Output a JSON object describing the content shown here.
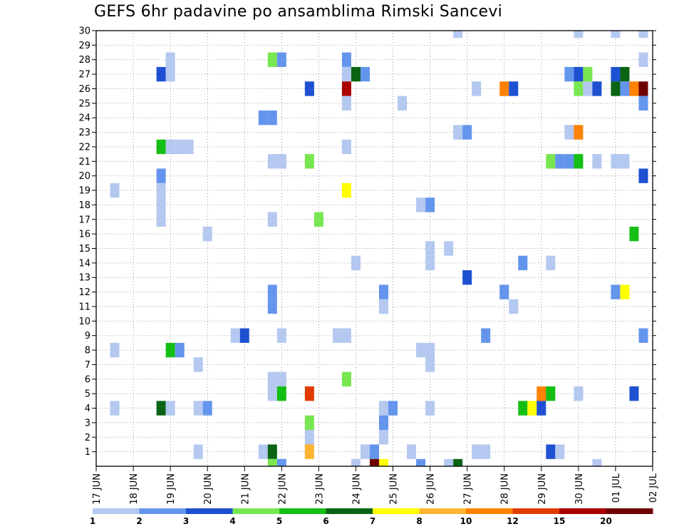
{
  "chart_data": {
    "type": "heatmap",
    "title": "GEFS 6hr padavine po ansamblima Rimski Sancevi",
    "x_labels": [
      "17 JUN",
      "18 JUN",
      "19 JUN",
      "20 JUN",
      "21 JUN",
      "22 JUN",
      "23 JUN",
      "24 JUN",
      "25 JUN",
      "26 JUN",
      "27 JUN",
      "28 JUN",
      "29 JUN",
      "30 JUN",
      "01 JUL",
      "02 JUL"
    ],
    "y_labels": [
      "1",
      "2",
      "3",
      "4",
      "5",
      "6",
      "7",
      "8",
      "9",
      "10",
      "11",
      "12",
      "13",
      "14",
      "15",
      "16",
      "17",
      "18",
      "19",
      "20",
      "21",
      "22",
      "23",
      "24",
      "25",
      "26",
      "27",
      "28",
      "29",
      "30"
    ],
    "ylim": [
      0,
      30
    ],
    "grid": true,
    "legend": {
      "placement": "bottom",
      "labels": [
        "1",
        "2",
        "3",
        "4",
        "5",
        "6",
        "7",
        "8",
        "10",
        "12",
        "15",
        "20"
      ],
      "colors": [
        "#b4c8f0",
        "#6495ed",
        "#1e50d2",
        "#78e650",
        "#14be14",
        "#0a6414",
        "#ffff00",
        "#ffb432",
        "#ff8200",
        "#e13c00",
        "#aa0000",
        "#6e0000"
      ]
    },
    "colors": {
      "c1": "#b4c8f0",
      "c2": "#6495ed",
      "c3": "#1e50d2",
      "c4": "#78e650",
      "c5": "#14be14",
      "c6": "#0a6414",
      "c7": "#ffff00",
      "c8": "#ffb432",
      "c10": "#ff8200",
      "c12": "#e13c00",
      "c15": "#aa0000",
      "c20": "#6e0000"
    },
    "cells": [
      [
        0.5,
        19,
        1
      ],
      [
        0.5,
        8,
        1
      ],
      [
        0.5,
        4,
        1
      ],
      [
        1.75,
        27,
        3
      ],
      [
        2,
        27,
        1
      ],
      [
        2,
        28,
        1
      ],
      [
        1.75,
        22,
        5
      ],
      [
        2,
        22,
        1
      ],
      [
        2.25,
        22,
        1
      ],
      [
        2.5,
        22,
        1
      ],
      [
        1.75,
        20,
        2
      ],
      [
        1.75,
        19,
        1
      ],
      [
        1.75,
        18,
        1
      ],
      [
        1.75,
        17,
        1
      ],
      [
        2,
        8,
        5
      ],
      [
        2.25,
        8,
        2
      ],
      [
        1.75,
        4,
        6
      ],
      [
        2,
        4,
        1
      ],
      [
        3,
        16,
        1
      ],
      [
        2.75,
        7,
        1
      ],
      [
        2.75,
        4,
        1
      ],
      [
        3,
        4,
        2
      ],
      [
        2.75,
        1,
        1
      ],
      [
        3.75,
        9,
        1
      ],
      [
        4,
        9,
        3
      ],
      [
        4.5,
        24,
        2
      ],
      [
        4.75,
        24,
        2
      ],
      [
        4.75,
        28,
        4
      ],
      [
        5,
        28,
        2
      ],
      [
        4.75,
        21,
        1
      ],
      [
        5,
        21,
        1
      ],
      [
        4.75,
        17,
        1
      ],
      [
        4.75,
        12,
        2
      ],
      [
        4.75,
        11,
        2
      ],
      [
        5,
        9,
        1
      ],
      [
        4.75,
        6,
        1
      ],
      [
        5,
        6,
        1
      ],
      [
        4.75,
        5,
        1
      ],
      [
        5,
        5,
        5
      ],
      [
        4.5,
        1,
        1
      ],
      [
        4.75,
        1,
        6
      ],
      [
        4.75,
        0,
        4
      ],
      [
        5,
        0,
        2
      ],
      [
        5.75,
        26,
        3
      ],
      [
        5.75,
        21,
        4
      ],
      [
        6,
        17,
        4
      ],
      [
        5.75,
        5,
        12
      ],
      [
        5.75,
        3,
        4
      ],
      [
        5.75,
        2,
        1
      ],
      [
        5.75,
        1,
        8
      ],
      [
        6.5,
        9,
        1
      ],
      [
        6.75,
        28,
        2
      ],
      [
        6.75,
        27,
        1
      ],
      [
        7,
        27,
        6
      ],
      [
        7.25,
        27,
        2
      ],
      [
        6.75,
        26,
        15
      ],
      [
        6.75,
        25,
        1
      ],
      [
        6.75,
        22,
        1
      ],
      [
        6.75,
        19,
        7
      ],
      [
        7,
        14,
        1
      ],
      [
        6.75,
        9,
        1
      ],
      [
        6.75,
        6,
        4
      ],
      [
        7,
        0,
        1
      ],
      [
        7.25,
        1,
        1
      ],
      [
        7.5,
        1,
        2
      ],
      [
        7.75,
        4,
        1
      ],
      [
        8,
        4,
        2
      ],
      [
        7.75,
        3,
        2
      ],
      [
        7.75,
        2,
        1
      ],
      [
        7.75,
        12,
        2
      ],
      [
        7.75,
        11,
        1
      ],
      [
        8.25,
        25,
        1
      ],
      [
        7.5,
        0,
        20
      ],
      [
        7.75,
        0,
        7
      ],
      [
        8.5,
        1,
        1
      ],
      [
        8.75,
        0,
        2
      ],
      [
        8.75,
        18,
        1
      ],
      [
        9,
        18,
        2
      ],
      [
        9,
        15,
        1
      ],
      [
        9.5,
        15,
        1
      ],
      [
        9,
        14,
        1
      ],
      [
        8.75,
        8,
        1
      ],
      [
        9,
        8,
        1
      ],
      [
        9,
        7,
        1
      ],
      [
        9,
        4,
        1
      ],
      [
        9.5,
        0,
        1
      ],
      [
        9.75,
        0,
        6
      ],
      [
        9.75,
        30,
        1
      ],
      [
        9.75,
        23,
        1
      ],
      [
        10,
        23,
        2
      ],
      [
        10.25,
        26,
        1
      ],
      [
        10,
        13,
        3
      ],
      [
        10.5,
        9,
        2
      ],
      [
        10.25,
        1,
        1
      ],
      [
        10.5,
        1,
        1
      ],
      [
        11,
        12,
        2
      ],
      [
        11,
        26,
        10
      ],
      [
        11.25,
        26,
        3
      ],
      [
        11.5,
        14,
        2
      ],
      [
        11.25,
        11,
        1
      ],
      [
        11.5,
        4,
        5
      ],
      [
        11.75,
        4,
        7
      ],
      [
        12,
        4,
        3
      ],
      [
        12,
        5,
        10
      ],
      [
        12.25,
        5,
        5
      ],
      [
        12.75,
        27,
        2
      ],
      [
        13,
        27,
        3
      ],
      [
        13,
        26,
        4
      ],
      [
        13.25,
        26,
        1
      ],
      [
        13.5,
        26,
        3
      ],
      [
        13.25,
        27,
        4
      ],
      [
        12.75,
        23,
        1
      ],
      [
        13,
        23,
        10
      ],
      [
        12.25,
        21,
        4
      ],
      [
        12.5,
        21,
        2
      ],
      [
        12.75,
        21,
        2
      ],
      [
        13,
        21,
        5
      ],
      [
        13.5,
        21,
        1
      ],
      [
        12.25,
        14,
        1
      ],
      [
        12.25,
        1,
        3
      ],
      [
        12.5,
        1,
        1
      ],
      [
        13,
        5,
        1
      ],
      [
        13,
        30,
        1
      ],
      [
        13.5,
        0,
        1
      ],
      [
        14,
        30,
        1
      ],
      [
        14,
        27,
        3
      ],
      [
        14.25,
        27,
        6
      ],
      [
        14,
        26,
        6
      ],
      [
        14.25,
        26,
        2
      ],
      [
        14,
        21,
        1
      ],
      [
        14.25,
        21,
        1
      ],
      [
        14,
        12,
        2
      ],
      [
        14.25,
        12,
        7
      ],
      [
        14.5,
        26,
        10
      ],
      [
        14.75,
        26,
        20
      ],
      [
        14.75,
        30,
        1
      ],
      [
        14.75,
        28,
        1
      ],
      [
        14.75,
        25,
        2
      ],
      [
        14.75,
        20,
        3
      ],
      [
        14.5,
        16,
        5
      ],
      [
        14.75,
        9,
        2
      ],
      [
        14.5,
        5,
        3
      ]
    ]
  }
}
